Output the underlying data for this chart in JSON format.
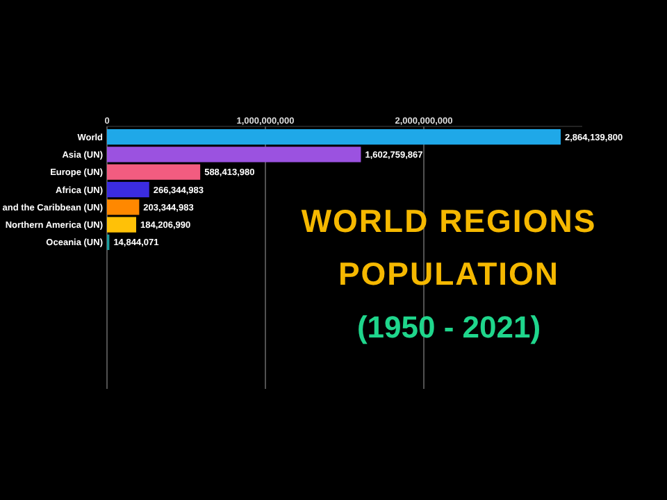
{
  "chart_data": {
    "type": "bar",
    "orientation": "horizontal",
    "title": "WORLD REGIONS POPULATION",
    "subtitle": "(1950 - 2021)",
    "categories": [
      "World",
      "Asia (UN)",
      "Europe (UN)",
      "Africa (UN)",
      "and the Caribbean (UN)",
      "Northern America (UN)",
      "Oceania (UN)"
    ],
    "values": [
      2864139800,
      1602759867,
      588413980,
      266344983,
      203344983,
      184206990,
      14844071
    ],
    "colors": [
      "#1fa8e8",
      "#9b52e0",
      "#f25c80",
      "#3b2ce0",
      "#ff8800",
      "#ffc107",
      "#1a9e9e"
    ],
    "xlim": [
      0,
      3000000000
    ],
    "xticks": [
      {
        "value": 0,
        "label": "0"
      },
      {
        "value": 1000000000,
        "label": "1,000,000,000"
      },
      {
        "value": 2000000000,
        "label": "2,000,000,000"
      }
    ],
    "value_labels": [
      "2,864,139,800",
      "1,602,759,867",
      "588,413,980",
      "266,344,983",
      "203,344,983",
      "184,206,990",
      "14,844,071"
    ],
    "grid": "x"
  }
}
